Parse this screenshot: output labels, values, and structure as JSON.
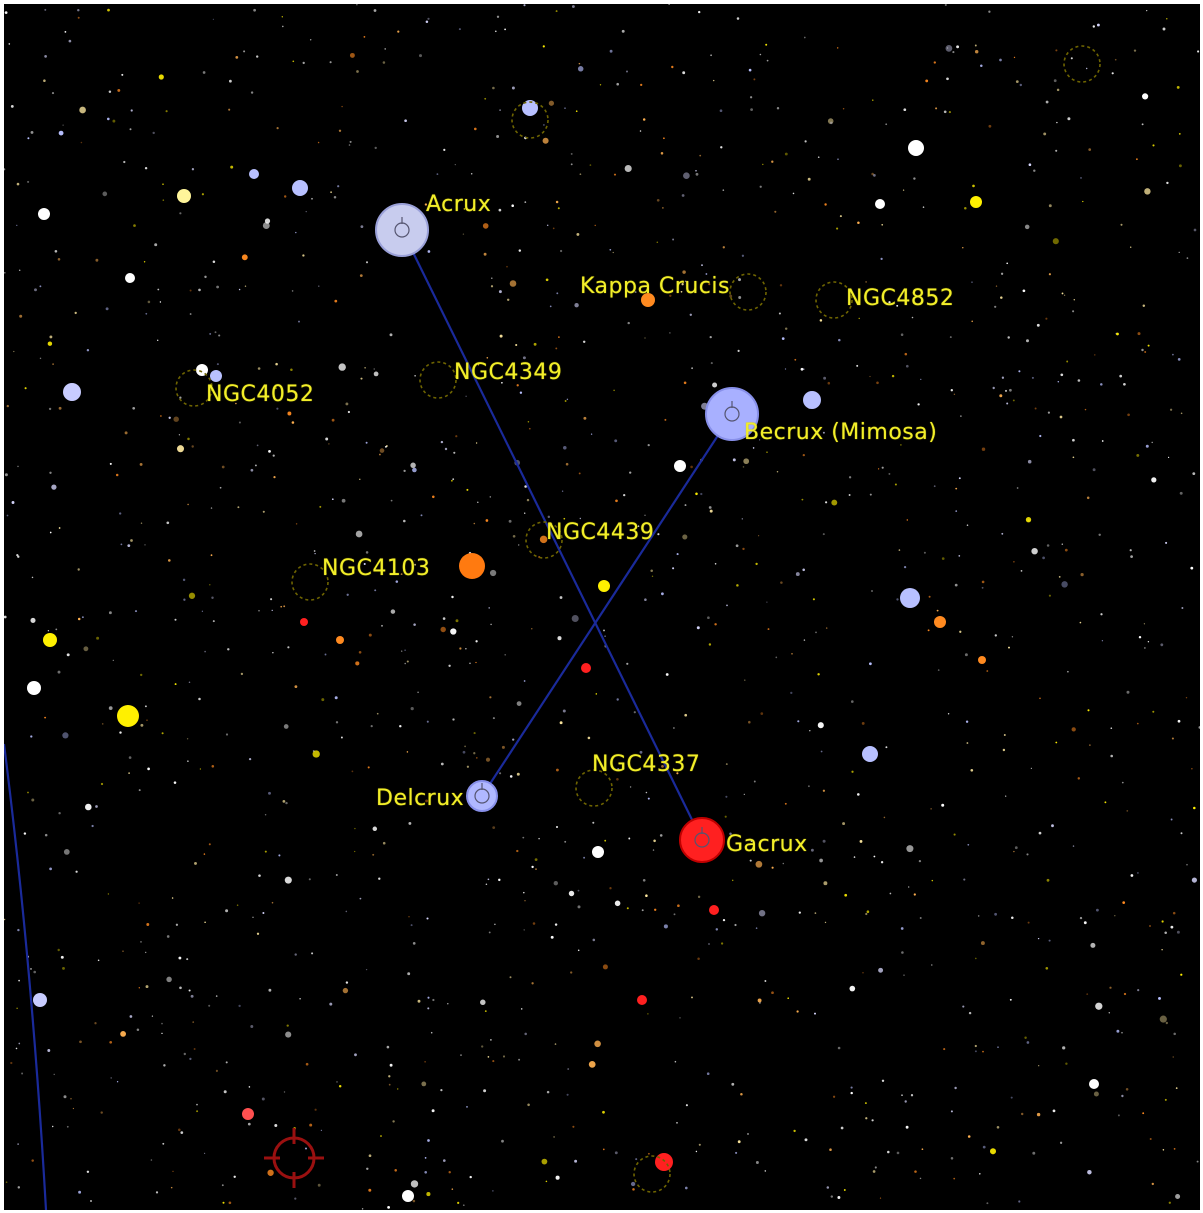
{
  "chart_type": "star-map",
  "colors": {
    "background": "#000000",
    "label": "#f2ee2a",
    "constellation_line": "#1a2a9a",
    "hot_star": "#b8c0ff",
    "red_giant": "#ff2020",
    "orange_star": "#ff8a20",
    "yellow_star": "#fff000",
    "dso_marker": "#6e6400",
    "target_marker": "#9a1010"
  },
  "constellation": {
    "lines": [
      {
        "from": "Acrux",
        "to": "Gacrux"
      },
      {
        "from": "Becrux (Mimosa)",
        "to": "Delcrux"
      }
    ]
  },
  "stars": [
    {
      "label": "Acrux",
      "color_role": "hot_star"
    },
    {
      "label": "Becrux (Mimosa)",
      "color_role": "hot_star"
    },
    {
      "label": "Gacrux",
      "color_role": "red_giant"
    },
    {
      "label": "Delcrux",
      "color_role": "hot_star"
    },
    {
      "label": "Kappa Crucis",
      "color_role": "orange_star"
    }
  ],
  "deep_sky_objects": [
    {
      "label": "NGC4852"
    },
    {
      "label": "NGC4349"
    },
    {
      "label": "NGC4052"
    },
    {
      "label": "NGC4439"
    },
    {
      "label": "NGC4103"
    },
    {
      "label": "NGC4337"
    }
  ],
  "icons": [
    "star-icon",
    "open-cluster-icon",
    "target-reticle-icon"
  ]
}
